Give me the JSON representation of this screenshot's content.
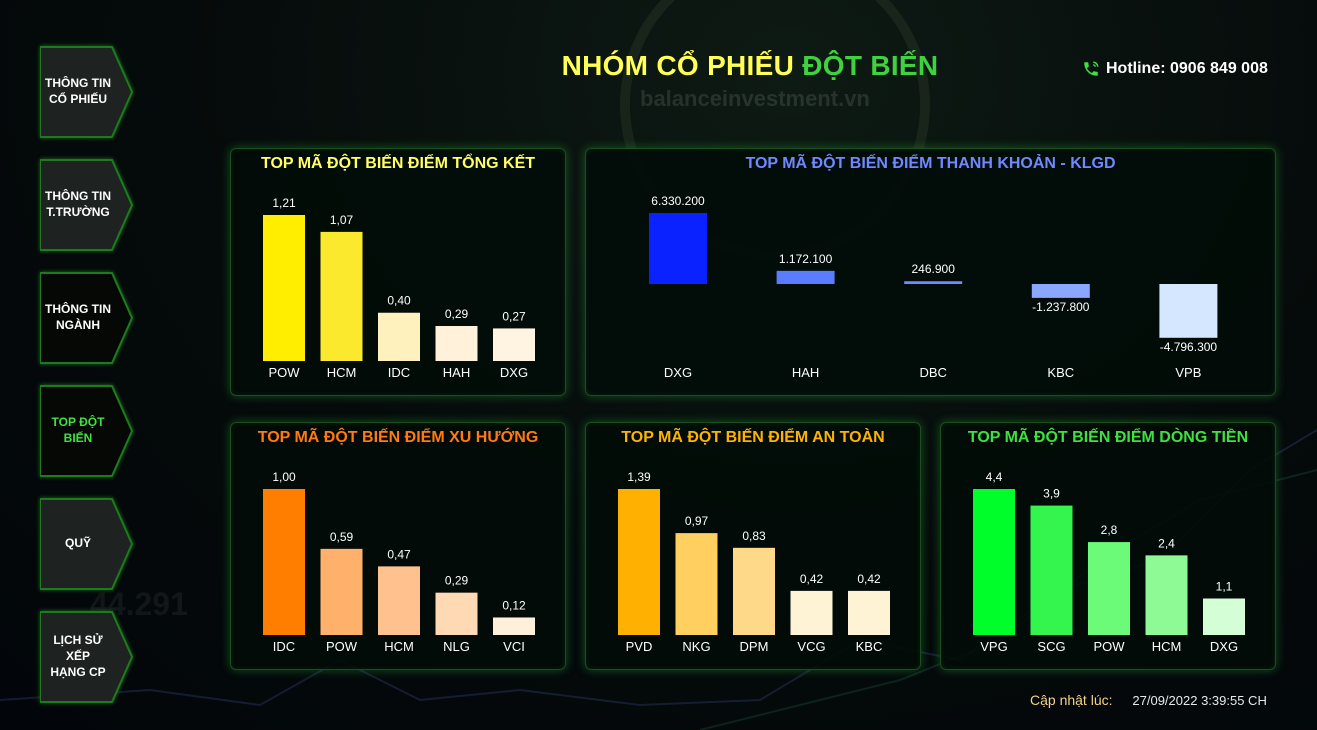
{
  "header": {
    "title_part1": "NHÓM CỔ PHIẾU",
    "title_part2": "ĐỘT BIẾN",
    "watermark": "balanceinvestment.vn",
    "hotline": "Hotline: 0906 849 008"
  },
  "sidebar": {
    "items": [
      {
        "line1": "THÔNG TIN",
        "line2": "CỔ PHIẾU",
        "active": false
      },
      {
        "line1": "THÔNG TIN",
        "line2": "T.TRƯỜNG",
        "active": false
      },
      {
        "line1": "THÔNG TIN",
        "line2": "NGÀNH",
        "active": false
      },
      {
        "line1": "TOP ĐỘT",
        "line2": "BIẾN",
        "active": true
      },
      {
        "line1": "QUỸ",
        "line2": "",
        "active": false
      },
      {
        "line1": "LỊCH SỬ XẾP",
        "line2": "HẠNG CP",
        "active": false
      }
    ]
  },
  "footer": {
    "updated_label": "Cập nhật lúc:",
    "updated_value": "27/09/2022 3:39:55 CH"
  },
  "colors": {
    "title_yellow": "#ffff55",
    "title_green": "#3fd13f",
    "updated_label": "#f2d389"
  },
  "chart_data": [
    {
      "type": "bar",
      "title": "TOP MÃ ĐỘT BIẾN ĐIỂM TỔNG KẾT",
      "title_color": "#ffff66",
      "categories": [
        "POW",
        "HCM",
        "IDC",
        "HAH",
        "DXG"
      ],
      "values": [
        1.21,
        1.07,
        0.4,
        0.29,
        0.27
      ],
      "labels": [
        "1,21",
        "1,07",
        "0,40",
        "0,29",
        "0,27"
      ],
      "colors": [
        "#ffee00",
        "#fbe92e",
        "#fff1bd",
        "#fff1da",
        "#fff3e2"
      ]
    },
    {
      "type": "bar",
      "title": "TOP MÃ ĐỘT BIẾN ĐIỂM THANH KHOẢN - KLGD",
      "title_color": "#6f89ff",
      "categories": [
        "DXG",
        "HAH",
        "DBC",
        "KBC",
        "VPB"
      ],
      "values": [
        6330200,
        1172100,
        246900,
        -1237800,
        -4796300
      ],
      "labels": [
        "6.330.200",
        "1.172.100",
        "246.900",
        "-1.237.800",
        "-4.796.300"
      ],
      "colors": [
        "#0a22ff",
        "#5a7cff",
        "#6e8cff",
        "#8aa8ff",
        "#d5e7ff"
      ]
    },
    {
      "type": "bar",
      "title": "TOP MÃ ĐỘT BIẾN ĐIỂM XU HƯỚNG",
      "title_color": "#ff7a10",
      "categories": [
        "IDC",
        "POW",
        "HCM",
        "NLG",
        "VCI"
      ],
      "values": [
        1.0,
        0.59,
        0.47,
        0.29,
        0.12
      ],
      "labels": [
        "1,00",
        "0,59",
        "0,47",
        "0,29",
        "0,12"
      ],
      "colors": [
        "#ff7e00",
        "#ffb06a",
        "#ffc28e",
        "#ffd8b4",
        "#fff0dc"
      ]
    },
    {
      "type": "bar",
      "title": "TOP MÃ ĐỘT BIẾN ĐIỂM AN TOÀN",
      "title_color": "#ffb300",
      "categories": [
        "PVD",
        "NKG",
        "DPM",
        "VCG",
        "KBC"
      ],
      "values": [
        1.39,
        0.97,
        0.83,
        0.42,
        0.42
      ],
      "labels": [
        "1,39",
        "0,97",
        "0,83",
        "0,42",
        "0,42"
      ],
      "colors": [
        "#ffb000",
        "#ffcf60",
        "#ffd98a",
        "#fff3d6",
        "#fff3d6"
      ]
    },
    {
      "type": "bar",
      "title": "TOP MÃ ĐỘT BIẾN ĐIỂM DÒNG TIỀN",
      "title_color": "#3fe03f",
      "categories": [
        "VPG",
        "SCG",
        "POW",
        "HCM",
        "DXG"
      ],
      "values": [
        4.4,
        3.9,
        2.8,
        2.4,
        1.1
      ],
      "labels": [
        "4,4",
        "3,9",
        "2,8",
        "2,4",
        "1,1"
      ],
      "colors": [
        "#00ff2a",
        "#33f54e",
        "#6cfa79",
        "#8dfa96",
        "#d4ffd6"
      ]
    }
  ]
}
